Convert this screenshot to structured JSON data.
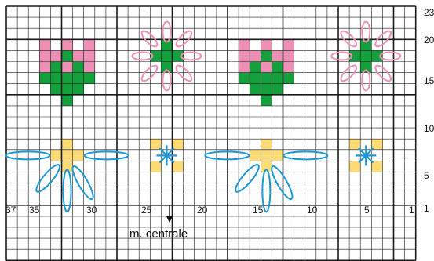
{
  "grid": {
    "columns": 37,
    "rows": 23,
    "colors": {
      "line": "#1a1a1a",
      "pink": "#ee8fb5",
      "green": "#14a03c",
      "yellow": "#fddc78",
      "blue": "#1a98d4"
    }
  },
  "labels": {
    "bottom": [
      "37",
      "35",
      "30",
      "25",
      "20",
      "15",
      "10",
      "5",
      "1"
    ],
    "right": [
      "23",
      "20",
      "15",
      "10",
      "5",
      "1"
    ],
    "center_caption": "m. centrale"
  },
  "motifs": [
    {
      "name": "tulip",
      "count": 2
    },
    {
      "name": "daisy-pink",
      "count": 2
    },
    {
      "name": "flower-yellow-blue-petals",
      "count": 2
    },
    {
      "name": "star-yellow-blue",
      "count": 2
    }
  ]
}
